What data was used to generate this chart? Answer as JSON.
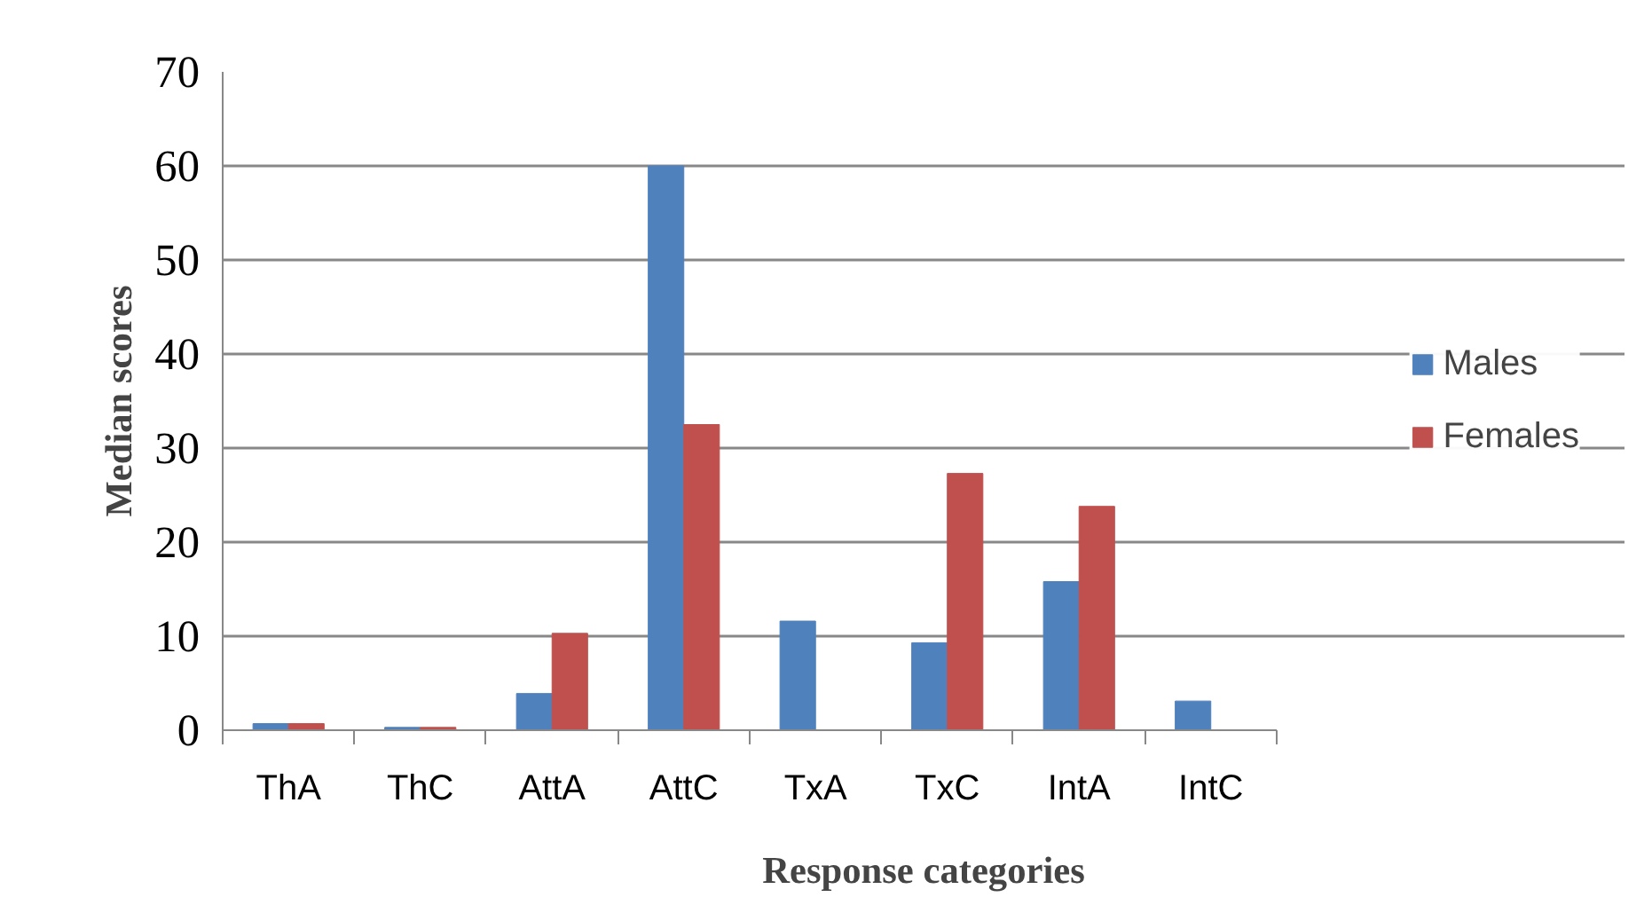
{
  "chart_data": {
    "type": "bar",
    "xlabel": "Response categories",
    "ylabel": "Median scores",
    "categories": [
      "ThA",
      "ThC",
      "AttA",
      "AttC",
      "TxA",
      "TxC",
      "IntA",
      "IntC"
    ],
    "series": [
      {
        "name": "Males",
        "color": "#4f81bd",
        "values": [
          0.7,
          0.3,
          3.9,
          60,
          11.6,
          9.3,
          15.8,
          3.1
        ]
      },
      {
        "name": "Females",
        "color": "#c0504d",
        "values": [
          0.7,
          0.3,
          10.3,
          32.5,
          0,
          27.3,
          23.8,
          0
        ]
      }
    ],
    "ylim": [
      0,
      70
    ],
    "yticks": [
      0,
      10,
      20,
      30,
      40,
      50,
      60,
      70
    ],
    "grid": "y",
    "legend": "right"
  }
}
